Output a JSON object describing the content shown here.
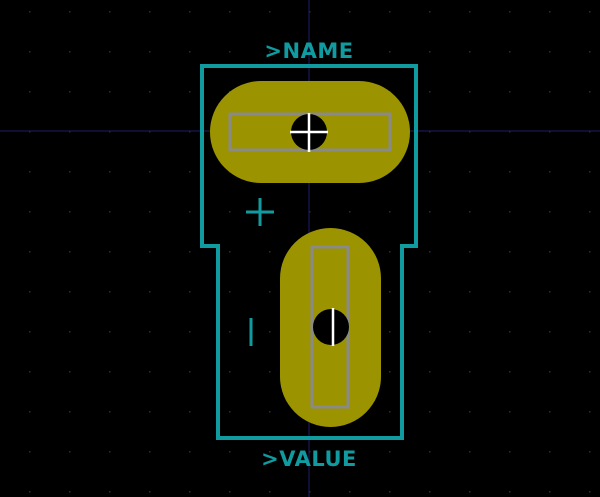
{
  "editor": {
    "view": "footprint-canvas",
    "background_color": "#000000",
    "grid_color": "#2c2c3a",
    "axis_color": "#1e1e6a"
  },
  "footprint": {
    "reference_text": ">NAME",
    "value_text": ">VALUE",
    "outline_color": "#0f9ba0",
    "pad_color": "#9b9400",
    "pad_outline_color": "#8a8a8a",
    "drill_color": "#000000",
    "cursor_color": "#ffffff",
    "pads": [
      {
        "shape": "oval",
        "orientation": "horizontal"
      },
      {
        "shape": "oval",
        "orientation": "vertical"
      }
    ],
    "polarity_marks": [
      {
        "symbol": "+"
      },
      {
        "symbol": "-"
      }
    ]
  }
}
